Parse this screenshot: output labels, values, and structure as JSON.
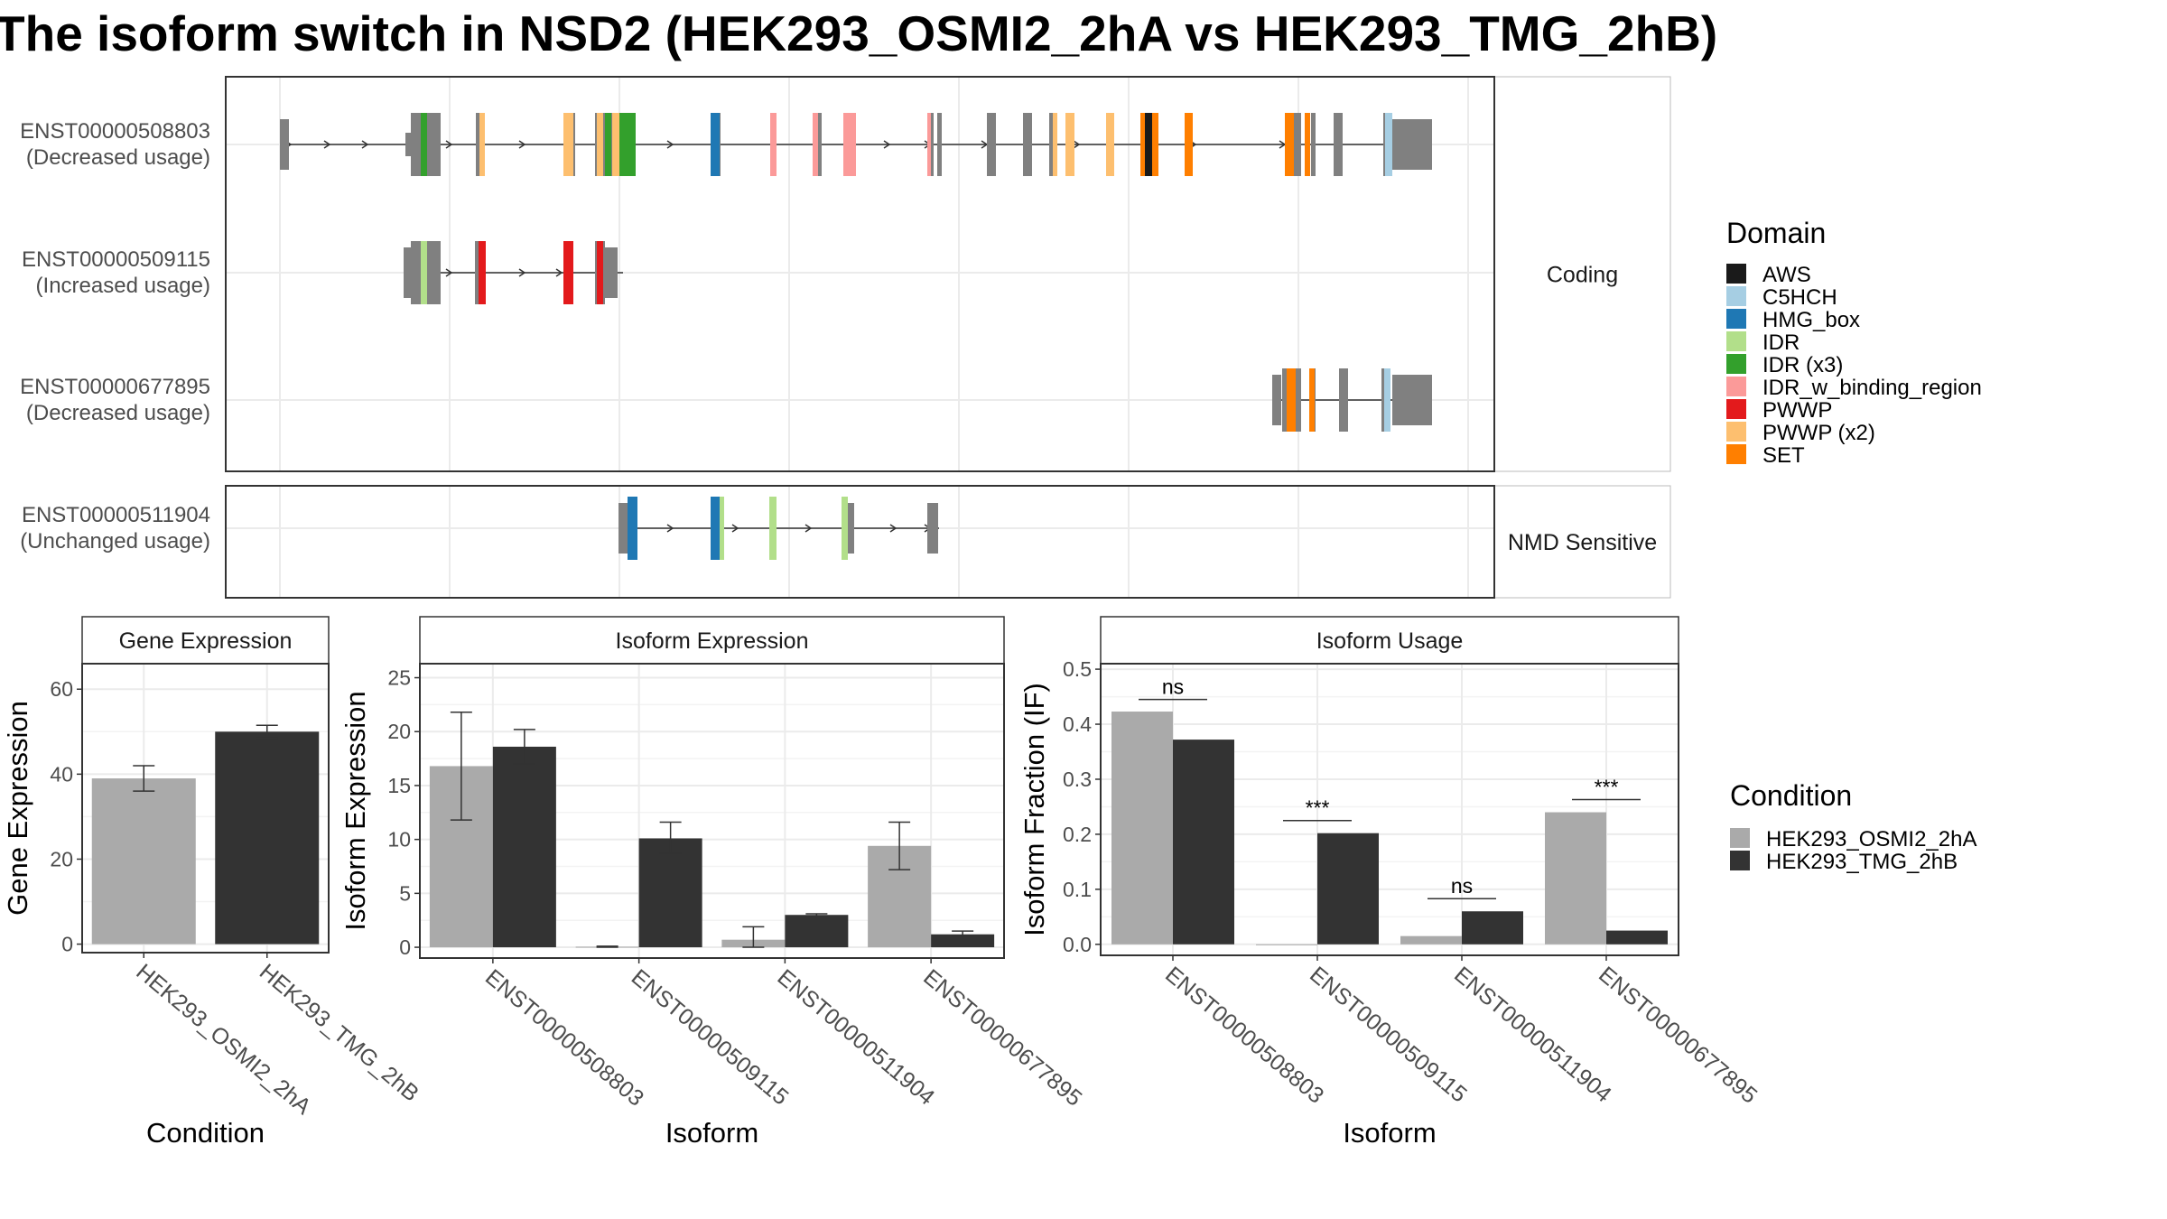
{
  "figure": {
    "title": "The isoform switch in NSD2 (HEK293_OSMI2_2hA vs HEK293_TMG_2hB)"
  },
  "structure": {
    "panels": [
      "Coding",
      "NMD Sensitive"
    ],
    "transcripts": [
      {
        "id": "ENST00000508803",
        "usage": "(Decreased usage)",
        "panel": "Coding"
      },
      {
        "id": "ENST00000509115",
        "usage": "(Increased usage)",
        "panel": "Coding"
      },
      {
        "id": "ENST00000677895",
        "usage": "(Decreased usage)",
        "panel": "Coding"
      },
      {
        "id": "ENST00000511904",
        "usage": "(Unchanged usage)",
        "panel": "NMD Sensitive"
      }
    ]
  },
  "legend_domain": {
    "title": "Domain",
    "items": [
      {
        "label": "AWS",
        "color": "#1a1a1a"
      },
      {
        "label": "C5HCH",
        "color": "#a6cee3"
      },
      {
        "label": "HMG_box",
        "color": "#1f78b4"
      },
      {
        "label": "IDR",
        "color": "#b2df8a"
      },
      {
        "label": "IDR (x3)",
        "color": "#33a02c"
      },
      {
        "label": "IDR_w_binding_region",
        "color": "#fb9a99"
      },
      {
        "label": "PWWP",
        "color": "#e31a1c"
      },
      {
        "label": "PWWP (x2)",
        "color": "#fdbf6f"
      },
      {
        "label": "SET",
        "color": "#ff7f00"
      }
    ]
  },
  "legend_condition": {
    "title": "Condition",
    "items": [
      {
        "label": "HEK293_OSMI2_2hA",
        "color": "#aaaaaa"
      },
      {
        "label": "HEK293_TMG_2hB",
        "color": "#333333"
      }
    ]
  },
  "colors": {
    "cds_gray": "#808080",
    "panel_border": "#333333",
    "grid": "#ebebeb"
  },
  "chart_data": [
    {
      "type": "bar",
      "title": "Gene Expression",
      "xlabel": "Condition",
      "ylabel": "Gene Expression",
      "ylim": [
        -2,
        66
      ],
      "yticks": [
        0,
        20,
        40,
        60
      ],
      "categories": [
        "HEK293_OSMI2_2hA",
        "HEK293_TMG_2hB"
      ],
      "values": [
        39,
        50
      ],
      "error_low": [
        36,
        48.5
      ],
      "error_high": [
        42,
        51.5
      ],
      "colors": [
        "#aaaaaa",
        "#333333"
      ]
    },
    {
      "type": "bar",
      "title": "Isoform Expression",
      "xlabel": "Isoform",
      "ylabel": "Isoform Expression",
      "ylim": [
        -1,
        26.3
      ],
      "yticks": [
        0,
        5,
        10,
        15,
        20,
        25
      ],
      "categories": [
        "ENST00000508803",
        "ENST00000509115",
        "ENST00000511904",
        "ENST00000677895"
      ],
      "series": [
        {
          "name": "HEK293_OSMI2_2hA",
          "values": [
            16.8,
            0.05,
            0.7,
            9.4
          ],
          "error_low": [
            11.8,
            0.0,
            0.0,
            7.2
          ],
          "error_high": [
            21.8,
            0.1,
            1.9,
            11.6
          ]
        },
        {
          "name": "HEK293_TMG_2hB",
          "values": [
            18.6,
            10.1,
            3.0,
            1.2
          ],
          "error_low": [
            17.0,
            8.7,
            2.9,
            1.0
          ],
          "error_high": [
            20.2,
            11.6,
            3.1,
            1.5
          ]
        }
      ]
    },
    {
      "type": "bar",
      "title": "Isoform Usage",
      "xlabel": "Isoform",
      "ylabel": "Isoform Fraction (IF)",
      "ylim": [
        -0.02,
        0.51
      ],
      "yticks": [
        0.0,
        0.1,
        0.2,
        0.3,
        0.4,
        0.5
      ],
      "ytick_labels": [
        "0.0",
        "0.1",
        "0.2",
        "0.3",
        "0.4",
        "0.5"
      ],
      "categories": [
        "ENST00000508803",
        "ENST00000509115",
        "ENST00000511904",
        "ENST00000677895"
      ],
      "series": [
        {
          "name": "HEK293_OSMI2_2hA",
          "values": [
            0.423,
            0.0,
            0.015,
            0.24
          ]
        },
        {
          "name": "HEK293_TMG_2hB",
          "values": [
            0.372,
            0.202,
            0.06,
            0.025
          ]
        }
      ],
      "significance": [
        {
          "category": "ENST00000508803",
          "label": "ns",
          "y": 0.445
        },
        {
          "category": "ENST00000509115",
          "label": "***",
          "y": 0.225
        },
        {
          "category": "ENST00000511904",
          "label": "ns",
          "y": 0.083
        },
        {
          "category": "ENST00000677895",
          "label": "***",
          "y": 0.263
        }
      ]
    }
  ]
}
